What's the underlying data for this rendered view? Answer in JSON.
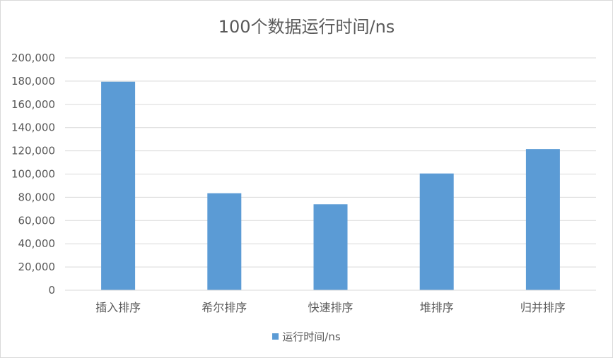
{
  "chart_data": {
    "type": "bar",
    "title": "100个数据运行时间/ns",
    "categories": [
      "插入排序",
      "希尔排序",
      "快速排序",
      "堆排序",
      "归并排序"
    ],
    "series": [
      {
        "name": "运行时间/ns",
        "values": [
          179500,
          83500,
          74000,
          100500,
          121500
        ],
        "color": "#5b9bd5"
      }
    ],
    "yticks": [
      "0",
      "20,000",
      "40,000",
      "60,000",
      "80,000",
      "100,000",
      "120,000",
      "140,000",
      "160,000",
      "180,000",
      "200,000"
    ],
    "ylim": [
      0,
      200000
    ],
    "grid": true,
    "legend_position": "bottom"
  }
}
